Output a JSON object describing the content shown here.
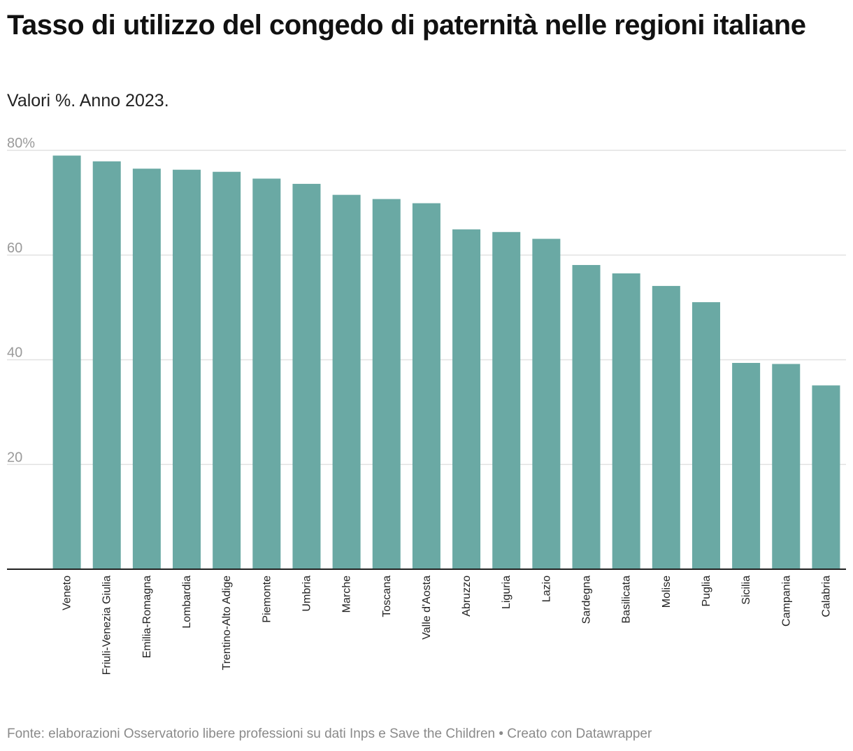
{
  "title": "Tasso di utilizzo del congedo di paternità nelle regioni italiane",
  "subtitle": "Valori %. Anno 2023.",
  "footer": "Fonte: elaborazioni Osservatorio libere professioni su dati Inps e Save the Children • Creato con Datawrapper",
  "colors": {
    "bar": "#6aa9a4",
    "grid": "#e2e2e2",
    "axis": "#222222"
  },
  "chart_data": {
    "type": "bar",
    "title": "Tasso di utilizzo del congedo di paternità nelle regioni italiane",
    "xlabel": "",
    "ylabel": "",
    "ylim": [
      0,
      80
    ],
    "yticks": [
      20,
      40,
      60,
      80
    ],
    "ytick_labels": [
      "20",
      "40",
      "60",
      "80%"
    ],
    "grid": true,
    "categories": [
      "Veneto",
      "Friuli-Venezia Giulia",
      "Emilia-Romagna",
      "Lombardia",
      "Trentino-Alto Adige",
      "Piemonte",
      "Umbria",
      "Marche",
      "Toscana",
      "Valle d'Aosta",
      "Abruzzo",
      "Liguria",
      "Lazio",
      "Sardegna",
      "Basilicata",
      "Molise",
      "Puglia",
      "Sicilia",
      "Campania",
      "Calabria"
    ],
    "values": [
      79.0,
      77.9,
      76.5,
      76.3,
      75.9,
      74.6,
      73.6,
      71.5,
      70.7,
      69.9,
      64.9,
      64.4,
      63.1,
      58.1,
      56.5,
      54.1,
      51.0,
      39.4,
      39.2,
      35.1
    ]
  }
}
